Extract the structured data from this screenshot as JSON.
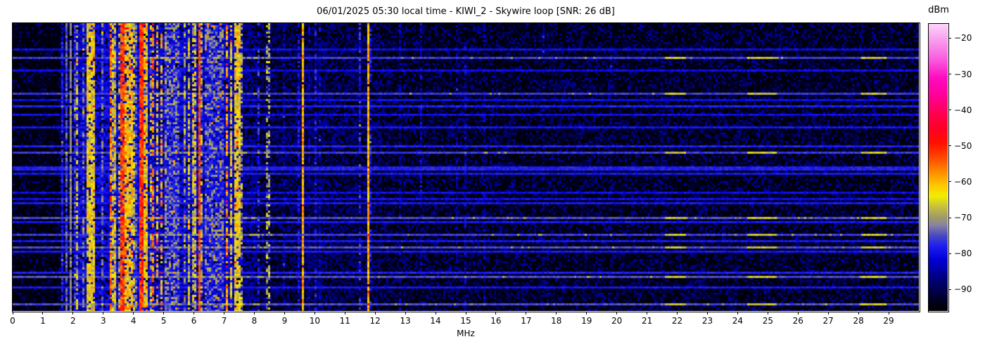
{
  "x_axis": {
    "label": "MHz",
    "range_mhz": [
      0,
      30
    ],
    "ticks": [
      0,
      1,
      2,
      3,
      4,
      5,
      6,
      7,
      8,
      9,
      10,
      11,
      12,
      13,
      14,
      15,
      16,
      17,
      18,
      19,
      20,
      21,
      22,
      23,
      24,
      25,
      26,
      27,
      28,
      29
    ]
  },
  "colorbar": {
    "label": "dBm",
    "vmin_dbm": -96,
    "vmax_dbm": -16,
    "ticks": [
      {
        "value": -20,
        "label": "−20"
      },
      {
        "value": -30,
        "label": "−30"
      },
      {
        "value": -40,
        "label": "−40"
      },
      {
        "value": -50,
        "label": "−50"
      },
      {
        "value": -60,
        "label": "−60"
      },
      {
        "value": -70,
        "label": "−70"
      },
      {
        "value": -80,
        "label": "−80"
      },
      {
        "value": -90,
        "label": "−90"
      }
    ]
  },
  "chart_data": {
    "type": "heatmap",
    "subtype": "radio-spectrogram-waterfall",
    "title": "06/01/2025 05:30 local time - KIWI_2 - Skywire loop [SNR: 26 dB]",
    "xlabel": "MHz",
    "x_range_mhz": [
      0,
      30
    ],
    "value_unit": "dBm",
    "value_range_dbm": [
      -96,
      -16
    ],
    "noise_floor_dbm": -95.5,
    "seed": 20250601,
    "colormap_stops": [
      [
        -96,
        "#000000"
      ],
      [
        -93,
        "#000024"
      ],
      [
        -90,
        "#000052"
      ],
      [
        -86,
        "#00008e"
      ],
      [
        -82,
        "#0000d4"
      ],
      [
        -78,
        "#1e1ef2"
      ],
      [
        -75,
        "#4a4ac2"
      ],
      [
        -72,
        "#8a86a0"
      ],
      [
        -70,
        "#a09a68"
      ],
      [
        -67,
        "#c8c040"
      ],
      [
        -64,
        "#f2ee00"
      ],
      [
        -61,
        "#ffc800"
      ],
      [
        -57,
        "#ff8800"
      ],
      [
        -53,
        "#ff4400"
      ],
      [
        -49,
        "#ff0f00"
      ],
      [
        -45,
        "#ff0028"
      ],
      [
        -41,
        "#ff0050"
      ],
      [
        -36,
        "#ff0098"
      ],
      [
        -31,
        "#ff0cc0"
      ],
      [
        -26,
        "#fa5ae0"
      ],
      [
        -21,
        "#f898ee"
      ],
      [
        -16,
        "#fdd4fa"
      ]
    ],
    "noise_region_fields": [
      "f_start_mhz",
      "f_end_mhz",
      "fill_probability",
      "level_dbm",
      "variance_db"
    ],
    "noise_regions": [
      [
        0.0,
        1.55,
        0.25,
        -90,
        5
      ],
      [
        1.55,
        2.0,
        0.5,
        -87,
        4
      ],
      [
        2.0,
        7.6,
        0.85,
        -82,
        4
      ],
      [
        7.6,
        8.1,
        0.7,
        -86,
        4
      ],
      [
        8.1,
        9.55,
        0.55,
        -88,
        4
      ],
      [
        9.55,
        12.2,
        0.6,
        -88,
        4
      ],
      [
        12.2,
        30.0,
        0.45,
        -89,
        5
      ]
    ],
    "band_fields": [
      "f_start_mhz",
      "f_end_mhz",
      "level_dbm",
      "variance_db",
      "density",
      "y_range_frac_optional"
    ],
    "bands": [
      [
        1.62,
        1.67,
        -79,
        4,
        0.85
      ],
      [
        1.76,
        1.81,
        -75,
        4,
        0.9
      ],
      [
        1.9,
        1.96,
        -72,
        2,
        0.95
      ],
      [
        2.02,
        2.1,
        -78,
        6,
        0.8
      ],
      [
        2.1,
        2.18,
        -68,
        7,
        0.65
      ],
      [
        2.3,
        2.38,
        -74,
        6,
        0.7
      ],
      [
        2.48,
        2.74,
        -64,
        6,
        0.85
      ],
      [
        2.95,
        3.02,
        -74,
        5,
        0.7
      ],
      [
        3.18,
        3.26,
        -56,
        6,
        0.75
      ],
      [
        3.28,
        3.44,
        -67,
        8,
        0.8
      ],
      [
        3.46,
        3.56,
        -70,
        9,
        0.7
      ],
      [
        3.58,
        3.68,
        -52,
        5,
        0.9
      ],
      [
        3.7,
        3.78,
        -60,
        7,
        0.8
      ],
      [
        3.8,
        3.95,
        -62,
        7,
        0.85
      ],
      [
        3.97,
        4.04,
        -68,
        7,
        0.7
      ],
      [
        4.06,
        4.14,
        -75,
        6,
        0.7
      ],
      [
        4.18,
        4.34,
        -51,
        5,
        0.92
      ],
      [
        4.36,
        4.5,
        -63,
        7,
        0.8
      ],
      [
        4.55,
        4.62,
        -70,
        7,
        0.6
      ],
      [
        4.64,
        4.7,
        -56,
        6,
        0.7
      ],
      [
        4.78,
        4.84,
        -62,
        8,
        0.6
      ],
      [
        4.9,
        4.97,
        -61,
        7,
        0.65
      ],
      [
        5.0,
        5.08,
        -72,
        6,
        0.7
      ],
      [
        5.1,
        5.55,
        -76,
        8,
        0.85
      ],
      [
        5.68,
        5.76,
        -70,
        7,
        0.6
      ],
      [
        5.8,
        5.88,
        -67,
        7,
        0.7
      ],
      [
        5.95,
        6.06,
        -66,
        7,
        0.75
      ],
      [
        6.12,
        6.19,
        -53,
        4,
        0.95
      ],
      [
        6.22,
        6.3,
        -70,
        7,
        0.6
      ],
      [
        6.35,
        7.02,
        -77,
        9,
        0.85
      ],
      [
        7.08,
        7.16,
        -58,
        7,
        0.7
      ],
      [
        7.18,
        7.3,
        -64,
        7,
        0.8
      ],
      [
        7.32,
        7.52,
        -63,
        6,
        0.85
      ],
      [
        7.55,
        7.62,
        -70,
        7,
        0.6
      ],
      [
        8.12,
        8.2,
        -78,
        6,
        0.55
      ],
      [
        8.42,
        8.55,
        -70,
        7,
        0.55
      ],
      [
        8.57,
        8.62,
        -76,
        5,
        0.5
      ],
      [
        8.95,
        9.0,
        -84,
        4,
        0.5
      ],
      [
        9.12,
        9.17,
        -83,
        4,
        0.5
      ],
      [
        9.43,
        9.48,
        -80,
        4,
        0.6
      ],
      [
        9.6,
        9.67,
        -60,
        6,
        0.97
      ],
      [
        9.8,
        9.85,
        -84,
        4,
        0.5
      ],
      [
        9.98,
        10.06,
        -80,
        5,
        0.7
      ],
      [
        10.12,
        10.17,
        -83,
        4,
        0.5
      ],
      [
        10.32,
        10.37,
        -82,
        4,
        0.5
      ],
      [
        10.95,
        11.0,
        -83,
        4,
        0.4
      ],
      [
        11.36,
        11.41,
        -73,
        3,
        0.85,
        [
          0.08,
          0.62
        ]
      ],
      [
        11.47,
        11.51,
        -77,
        4,
        0.5
      ],
      [
        11.72,
        11.79,
        -60,
        5,
        0.97
      ],
      [
        11.82,
        11.86,
        -79,
        4,
        0.6
      ],
      [
        12.06,
        12.11,
        -82,
        4,
        0.5
      ],
      [
        12.78,
        12.84,
        -84,
        4,
        0.45
      ],
      [
        13.48,
        13.54,
        -82,
        4,
        0.5
      ],
      [
        14.68,
        14.73,
        -84,
        4,
        0.4
      ],
      [
        14.98,
        15.04,
        -83,
        4,
        0.45
      ],
      [
        15.58,
        15.63,
        -84,
        4,
        0.4
      ],
      [
        16.95,
        17.0,
        -85,
        4,
        0.35
      ],
      [
        17.53,
        17.58,
        -85,
        4,
        0.35
      ],
      [
        19.78,
        19.83,
        -86,
        4,
        0.3
      ],
      [
        21.45,
        21.5,
        -86,
        4,
        0.3
      ]
    ],
    "event_fields": [
      "y_frac",
      "level_dbm",
      "has_hot_segments"
    ],
    "horizontal_events": [
      [
        0.085,
        -80,
        0
      ],
      [
        0.115,
        -76,
        1
      ],
      [
        0.163,
        -80,
        0
      ],
      [
        0.244,
        -76,
        1
      ],
      [
        0.268,
        -80,
        0
      ],
      [
        0.285,
        -78,
        0
      ],
      [
        0.315,
        -80,
        0
      ],
      [
        0.363,
        -79,
        0
      ],
      [
        0.424,
        -78,
        0
      ],
      [
        0.451,
        -76,
        1
      ],
      [
        0.498,
        -78,
        0
      ],
      [
        0.51,
        -78,
        0
      ],
      [
        0.524,
        -79,
        0
      ],
      [
        0.59,
        -80,
        0
      ],
      [
        0.61,
        -80,
        0
      ],
      [
        0.627,
        -79,
        0
      ],
      [
        0.68,
        -75,
        1
      ],
      [
        0.693,
        -79,
        0
      ],
      [
        0.732,
        -76,
        1
      ],
      [
        0.756,
        -79,
        0
      ],
      [
        0.78,
        -75,
        1
      ],
      [
        0.793,
        -79,
        0
      ],
      [
        0.871,
        -78,
        0
      ],
      [
        0.883,
        -75,
        1
      ],
      [
        0.92,
        -79,
        0
      ],
      [
        0.98,
        -75,
        1
      ]
    ],
    "hot_segment_zones_mhz": [
      [
        21.6,
        22.3
      ],
      [
        24.3,
        25.3
      ],
      [
        28.1,
        28.9
      ]
    ],
    "hot_segment_level_dbm": -67
  }
}
